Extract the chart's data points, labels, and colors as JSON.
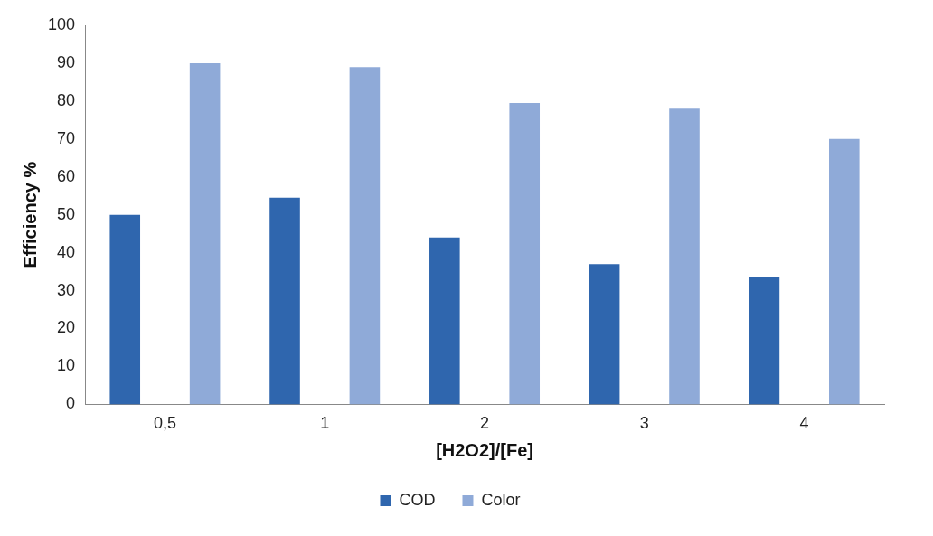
{
  "chart_data": {
    "type": "bar",
    "xlabel": "[H2O2]/[Fe]",
    "ylabel": "Efficiency %",
    "categories": [
      "0,5",
      "1",
      "2",
      "3",
      "4"
    ],
    "series": [
      {
        "name": "COD",
        "color": "#2f66ae",
        "values": [
          50,
          54.5,
          44,
          37,
          33.5
        ]
      },
      {
        "name": "Color",
        "color": "#8faad8",
        "values": [
          90,
          89,
          79.5,
          78,
          70
        ]
      }
    ],
    "ylim": [
      0,
      100
    ],
    "yticks": [
      0,
      10,
      20,
      30,
      40,
      50,
      60,
      70,
      80,
      90,
      100
    ],
    "grid": false,
    "legend": "bottom"
  }
}
